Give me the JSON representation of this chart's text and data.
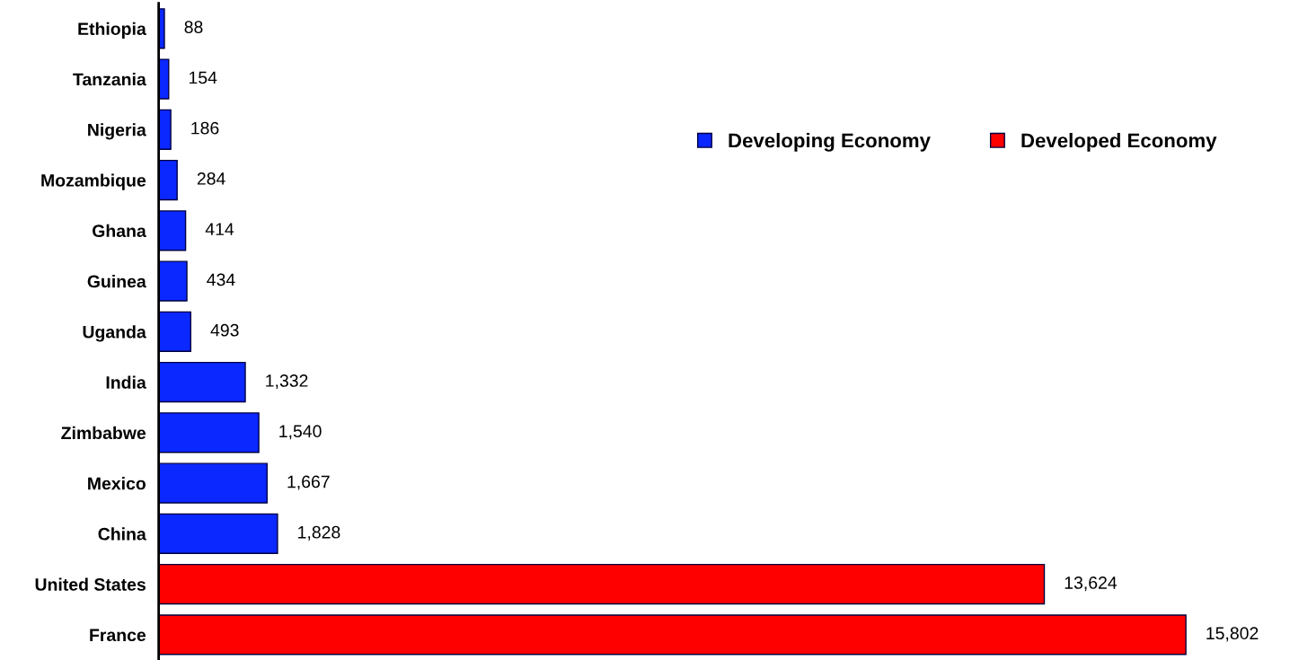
{
  "chart_data": {
    "type": "bar",
    "orientation": "horizontal",
    "stacked": true,
    "categories": [
      "Ethiopia",
      "Tanzania",
      "Nigeria",
      "Mozambique",
      "Ghana",
      "Guinea",
      "Uganda",
      "India",
      "Zimbabwe",
      "Mexico",
      "China",
      "United States",
      "France"
    ],
    "series": [
      {
        "name": "Developing Economy",
        "color": "#0a28ff",
        "values": [
          88,
          154,
          186,
          284,
          414,
          434,
          493,
          1332,
          1540,
          1667,
          1828,
          null,
          null
        ],
        "value_labels": [
          "88",
          "154",
          "186",
          "284",
          "414",
          "434",
          "493",
          "1,332",
          "1,540",
          "1,667",
          "1,828",
          null,
          null
        ]
      },
      {
        "name": "Developed Economy",
        "color": "#ff0000",
        "values": [
          null,
          null,
          null,
          null,
          null,
          null,
          null,
          null,
          null,
          null,
          null,
          13624,
          15802
        ],
        "value_labels": [
          null,
          null,
          null,
          null,
          null,
          null,
          null,
          null,
          null,
          null,
          null,
          "13,624",
          "15,802"
        ]
      }
    ],
    "tick_labels": "y",
    "grid": false,
    "legend": "top right"
  }
}
